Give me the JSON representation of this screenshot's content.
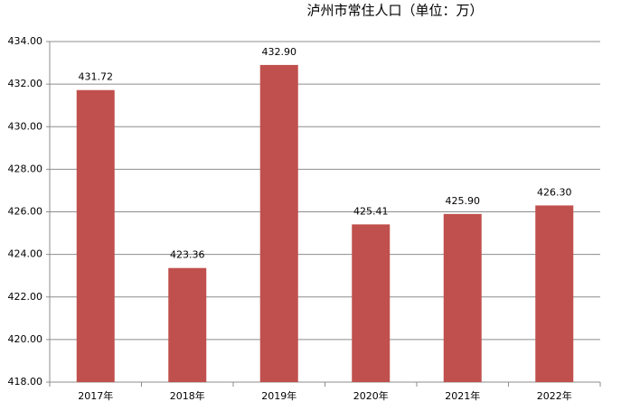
{
  "chart_data": {
    "type": "bar",
    "title": "泸州市常住人口（单位：万）",
    "categories": [
      "2017年",
      "2018年",
      "2019年",
      "2020年",
      "2021年",
      "2022年"
    ],
    "values": [
      431.72,
      423.36,
      432.9,
      425.41,
      425.9,
      426.3
    ],
    "value_labels": [
      "431.72",
      "423.36",
      "432.90",
      "425.41",
      "425.90",
      "426.30"
    ],
    "color": "#c0504d",
    "ylim": [
      418,
      434
    ],
    "yticks": [
      {
        "value": 418,
        "label": "418.00"
      },
      {
        "value": 420,
        "label": "420.00"
      },
      {
        "value": 422,
        "label": "422.00"
      },
      {
        "value": 424,
        "label": "424.00"
      },
      {
        "value": 426,
        "label": "426.00"
      },
      {
        "value": 428,
        "label": "428.00"
      },
      {
        "value": 430,
        "label": "430.00"
      },
      {
        "value": 432,
        "label": "432.00"
      },
      {
        "value": 434,
        "label": "434.00"
      }
    ],
    "grid": true
  }
}
